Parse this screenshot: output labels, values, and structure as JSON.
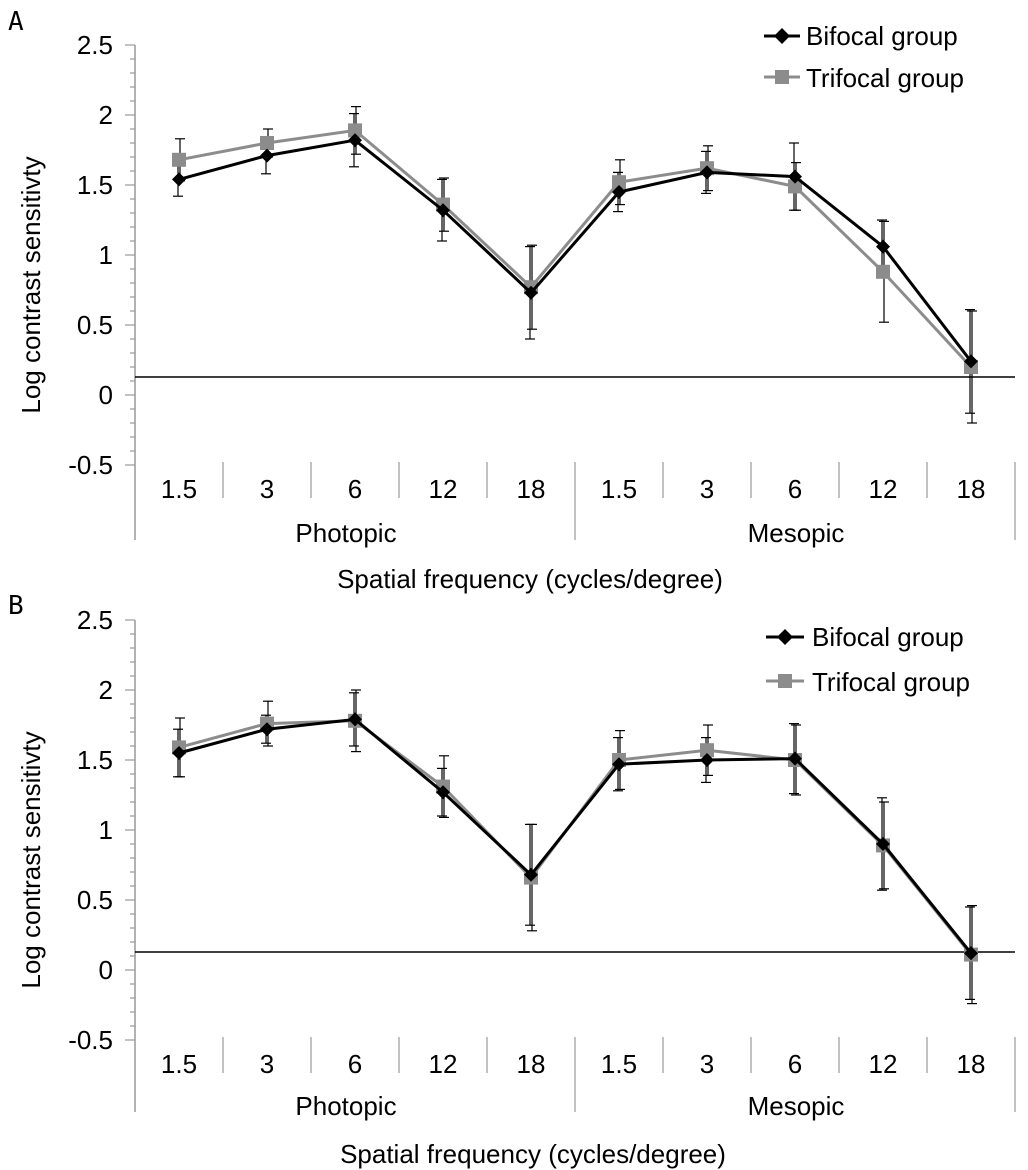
{
  "colors": {
    "bifocal": "#000000",
    "trifocal": "#8c8c8c",
    "axis": "#999999"
  },
  "chart_data": [
    {
      "type": "line",
      "panel_label": "A",
      "ylabel": "Log contrast sensitivty",
      "xlabel": "Spatial frequency (cycles/degree)",
      "ylim": [
        -0.5,
        2.5
      ],
      "yticks": [
        "2.5",
        "2",
        "1.5",
        "1",
        "0.5",
        "0",
        "-0.5"
      ],
      "categories": [
        "1.5",
        "3",
        "6",
        "12",
        "18",
        "1.5",
        "3",
        "6",
        "12",
        "18"
      ],
      "groups": [
        "Photopic",
        "Mesopic"
      ],
      "series": [
        {
          "name": "Bifocal group",
          "marker": "diamond",
          "values": [
            1.54,
            1.71,
            1.82,
            1.32,
            0.73,
            1.45,
            1.59,
            1.56,
            1.06,
            0.24
          ],
          "errors": [
            0.12,
            0.13,
            0.19,
            0.22,
            0.33,
            0.14,
            0.15,
            0.24,
            0.19,
            0.37
          ]
        },
        {
          "name": "Trifocal group",
          "marker": "square",
          "values": [
            1.68,
            1.8,
            1.89,
            1.36,
            0.77,
            1.52,
            1.62,
            1.49,
            0.88,
            0.2
          ],
          "errors": [
            0.15,
            0.1,
            0.17,
            0.19,
            0.3,
            0.16,
            0.16,
            0.17,
            0.36,
            0.4
          ]
        }
      ]
    },
    {
      "type": "line",
      "panel_label": "B",
      "ylabel": "Log contrast sensitivty",
      "xlabel": "Spatial frequency (cycles/degree)",
      "ylim": [
        -0.5,
        2.5
      ],
      "yticks": [
        "2.5",
        "2",
        "1.5",
        "1",
        "0.5",
        "0",
        "-0.5"
      ],
      "categories": [
        "1.5",
        "3",
        "6",
        "12",
        "18",
        "1.5",
        "3",
        "6",
        "12",
        "18"
      ],
      "groups": [
        "Photopic",
        "Mesopic"
      ],
      "series": [
        {
          "name": "Bifocal group",
          "marker": "diamond",
          "values": [
            1.55,
            1.72,
            1.79,
            1.27,
            0.68,
            1.47,
            1.5,
            1.51,
            0.9,
            0.12
          ],
          "errors": [
            0.17,
            0.1,
            0.19,
            0.17,
            0.36,
            0.19,
            0.16,
            0.25,
            0.33,
            0.33
          ]
        },
        {
          "name": "Trifocal group",
          "marker": "square",
          "values": [
            1.59,
            1.76,
            1.78,
            1.31,
            0.66,
            1.5,
            1.57,
            1.5,
            0.89,
            0.11
          ],
          "errors": [
            0.21,
            0.16,
            0.22,
            0.22,
            0.38,
            0.21,
            0.18,
            0.25,
            0.31,
            0.35
          ]
        }
      ]
    }
  ]
}
